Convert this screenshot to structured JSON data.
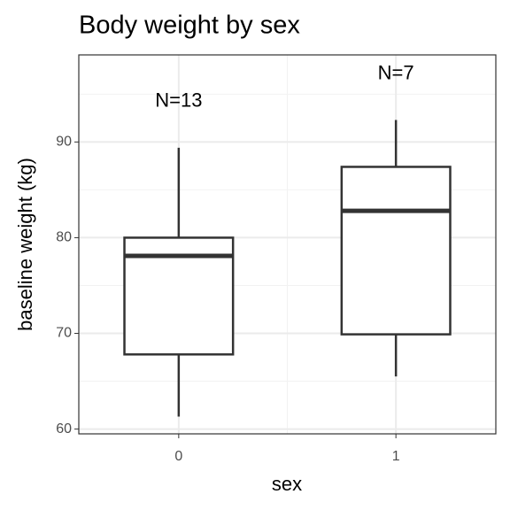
{
  "chart_data": {
    "type": "box",
    "title": "Body weight by sex",
    "x_label": "sex",
    "y_label": "baseline weight (kg)",
    "categories": [
      "0",
      "1"
    ],
    "whisker_low": [
      61.3,
      65.5
    ],
    "q1": [
      67.8,
      69.9
    ],
    "median": [
      78.1,
      82.8
    ],
    "q3": [
      80.0,
      87.4
    ],
    "whisker_high": [
      89.4,
      92.3
    ],
    "annotations": [
      "N=13",
      "N=7"
    ],
    "color": "#333333",
    "ylim": [
      59.5,
      99.1
    ],
    "yticks": [
      60,
      70,
      80,
      90
    ],
    "minor_yticks": [
      65,
      75,
      85,
      95
    ],
    "grid": true
  }
}
